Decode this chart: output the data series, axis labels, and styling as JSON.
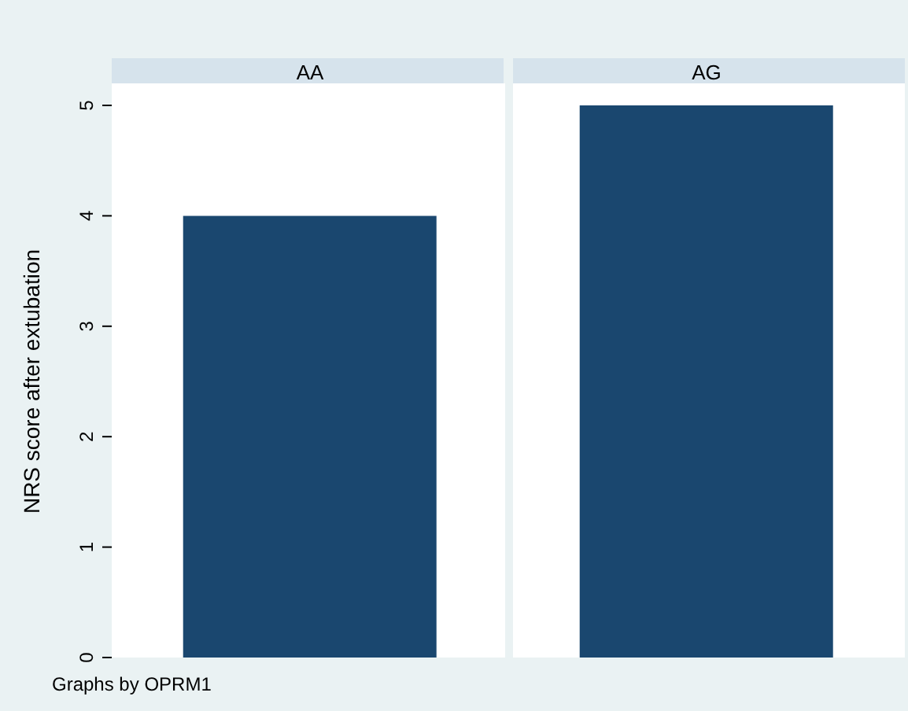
{
  "chart_data": {
    "type": "bar",
    "categories": [
      "AA",
      "AG"
    ],
    "values": [
      4,
      5
    ],
    "color": "#1a476f",
    "ylim": [
      0,
      5
    ],
    "yticks": [
      0,
      1,
      2,
      3,
      4,
      5
    ],
    "ylabel": "NRS score after extubation",
    "annotations": [
      "Graphs by OPRM1"
    ]
  }
}
